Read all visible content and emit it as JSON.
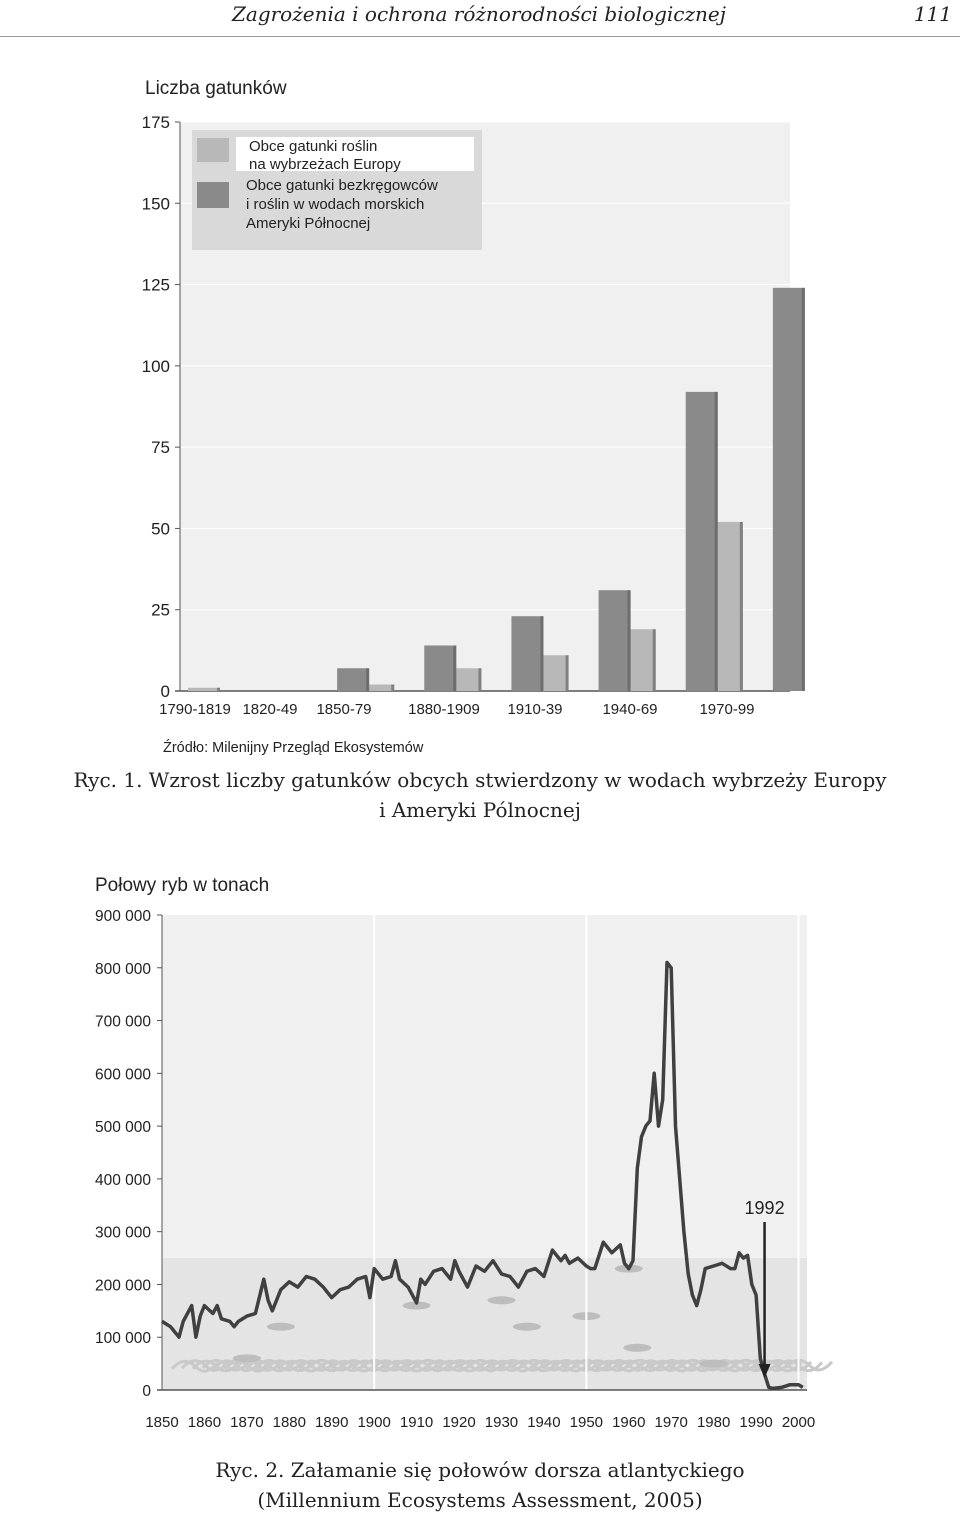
{
  "header": {
    "running_title": "Zagrożenia i ochrona różnorodności biologicznej",
    "page_number": "111"
  },
  "figure1": {
    "caption_line1": "Ryc. 1. Wzrost liczby gatunków obcych stwierdzony w wodach wybrzeży Europy",
    "caption_line2": "i Ameryki Pólnocnej",
    "source": "Źródło: Milenijny Przegląd Ekosystemów",
    "legend": [
      [
        "Obce gatunki roślin",
        "na wybrzeżach Europy"
      ],
      [
        "Obce gatunki bezkręgowców",
        "i roślin w wodach morskich",
        "Ameryki Północnej"
      ]
    ]
  },
  "figure2": {
    "caption_line1": "Ryc. 2. Załamanie się połowów dorsza atlantyckiego",
    "caption_line2": "(Millennium Ecosystems Assessment, 2005)",
    "annotation": "1992"
  },
  "colors": {
    "series_light": "#b8b8b8",
    "series_dark": "#8a8a8a",
    "plot_bg": "#f0f0f0",
    "line": "#404040"
  },
  "chart_data": [
    {
      "type": "bar",
      "title": "",
      "ylabel": "Liczba gatunków",
      "xlabel": "",
      "ylim": [
        0,
        175
      ],
      "yticks": [
        0,
        25,
        50,
        75,
        100,
        125,
        150,
        175
      ],
      "categories": [
        "1790-1819",
        "1820-49",
        "1850-79",
        "1880-1909",
        "1910-39",
        "1940-69",
        "1970-99"
      ],
      "tick_labels": [
        "1790-1819",
        "1820-49",
        "1850-79",
        "1880-1909",
        "1910-39",
        "1940-69",
        "1970-99"
      ],
      "series": [
        {
          "values": [
            1,
            null,
            2,
            7,
            11,
            19,
            52
          ]
        },
        {
          "values": [
            null,
            7,
            14,
            23,
            31,
            92,
            124
          ]
        }
      ],
      "grid": "horizontal",
      "legend": "top-left"
    },
    {
      "type": "line",
      "title": "",
      "ylabel": "Połowy ryb w tonach",
      "xlabel": "",
      "xlim": [
        1850,
        2002
      ],
      "ylim": [
        0,
        900000
      ],
      "xticks": [
        1850,
        1860,
        1870,
        1880,
        1890,
        1900,
        1910,
        1920,
        1930,
        1940,
        1950,
        1960,
        1970,
        1980,
        1990,
        2000
      ],
      "yticks": [
        0,
        100000,
        200000,
        300000,
        400000,
        500000,
        600000,
        700000,
        800000,
        900000
      ],
      "ytick_labels": [
        "0",
        "100 000",
        "200 000",
        "300 000",
        "400 000",
        "500 000",
        "600 000",
        "700 000",
        "800 000",
        "900 000"
      ],
      "grid": "vertical",
      "series": [
        {
          "x": [
            1850,
            1852,
            1854,
            1855,
            1857,
            1858,
            1859,
            1860,
            1862,
            1863,
            1864,
            1866,
            1867,
            1868,
            1870,
            1872,
            1874,
            1875,
            1876,
            1878,
            1880,
            1882,
            1884,
            1886,
            1888,
            1889,
            1890,
            1892,
            1894,
            1896,
            1898,
            1899,
            1900,
            1902,
            1904,
            1905,
            1906,
            1908,
            1910,
            1911,
            1912,
            1914,
            1916,
            1918,
            1919,
            1920,
            1922,
            1924,
            1926,
            1928,
            1930,
            1932,
            1934,
            1936,
            1938,
            1940,
            1942,
            1944,
            1945,
            1946,
            1948,
            1950,
            1951,
            1952,
            1954,
            1955,
            1956,
            1958,
            1959,
            1960,
            1961,
            1962,
            1963,
            1964,
            1965,
            1966,
            1967,
            1968,
            1969,
            1970,
            1971,
            1972,
            1973,
            1974,
            1975,
            1976,
            1977,
            1978,
            1980,
            1982,
            1984,
            1985,
            1986,
            1987,
            1988,
            1989,
            1990,
            1991,
            1992,
            1993,
            1994,
            1996,
            1998,
            2000,
            2001
          ],
          "y": [
            130000,
            120000,
            100000,
            130000,
            160000,
            100000,
            140000,
            160000,
            145000,
            160000,
            135000,
            130000,
            120000,
            130000,
            140000,
            145000,
            210000,
            170000,
            150000,
            190000,
            205000,
            195000,
            215000,
            210000,
            195000,
            185000,
            175000,
            190000,
            195000,
            210000,
            215000,
            175000,
            230000,
            210000,
            215000,
            245000,
            210000,
            195000,
            165000,
            210000,
            200000,
            225000,
            230000,
            210000,
            245000,
            225000,
            195000,
            235000,
            225000,
            245000,
            220000,
            215000,
            195000,
            225000,
            230000,
            215000,
            265000,
            245000,
            255000,
            240000,
            250000,
            235000,
            230000,
            230000,
            280000,
            270000,
            260000,
            275000,
            240000,
            230000,
            245000,
            420000,
            480000,
            500000,
            510000,
            600000,
            500000,
            550000,
            810000,
            800000,
            500000,
            400000,
            300000,
            220000,
            180000,
            160000,
            190000,
            230000,
            235000,
            240000,
            230000,
            230000,
            260000,
            250000,
            255000,
            200000,
            180000,
            60000,
            30000,
            5000,
            3000,
            5000,
            10000,
            10000,
            5000
          ]
        }
      ]
    }
  ]
}
